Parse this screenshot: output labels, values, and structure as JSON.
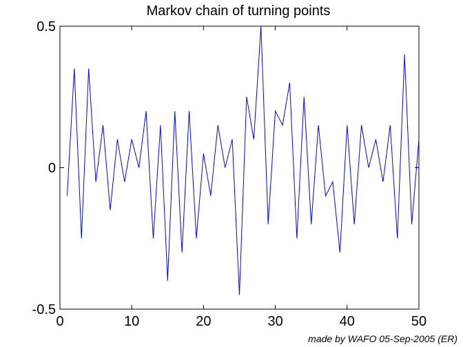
{
  "chart_data": {
    "type": "line",
    "title": "Markov chain of turning points",
    "xlabel": "",
    "ylabel": "",
    "xlim": [
      0,
      50
    ],
    "ylim": [
      -0.5,
      0.5
    ],
    "grid": false,
    "x_ticks": [
      0,
      10,
      20,
      30,
      40,
      50
    ],
    "x_tick_labels": [
      "0",
      "10",
      "20",
      "30",
      "40",
      "50"
    ],
    "y_ticks": [
      -0.5,
      0,
      0.5
    ],
    "y_tick_labels": [
      "-0.5",
      "0",
      "0.5"
    ],
    "series": [
      {
        "color": "#0000ff",
        "x": [
          1,
          2,
          3,
          4,
          5,
          6,
          7,
          8,
          9,
          10,
          11,
          12,
          13,
          14,
          15,
          16,
          17,
          18,
          19,
          20,
          21,
          22,
          23,
          24,
          25,
          26,
          27,
          28,
          29,
          30,
          31,
          32,
          33,
          34,
          35,
          36,
          37,
          38,
          39,
          40,
          41,
          42,
          43,
          44,
          45,
          46,
          47,
          48,
          49,
          50
        ],
        "values": [
          -0.1,
          0.35,
          -0.25,
          0.35,
          -0.05,
          0.15,
          -0.15,
          0.1,
          -0.05,
          0.1,
          0,
          0.2,
          -0.25,
          0.15,
          -0.4,
          0.2,
          -0.3,
          0.2,
          -0.25,
          0.05,
          -0.1,
          0.15,
          0,
          0.1,
          -0.45,
          0.25,
          0.1,
          0.5,
          -0.2,
          0.2,
          0.15,
          0.3,
          -0.25,
          0.25,
          -0.2,
          0.15,
          -0.1,
          -0.05,
          -0.3,
          0.15,
          -0.2,
          0.15,
          0,
          0.1,
          -0.05,
          0.15,
          -0.25,
          0.4,
          -0.2,
          0.1
        ]
      }
    ]
  },
  "credit": "made by WAFO 05-Sep-2005 (ER)"
}
